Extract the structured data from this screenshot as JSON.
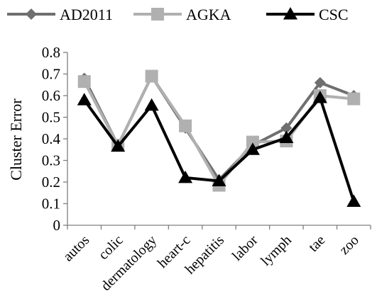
{
  "chart_data": {
    "type": "line",
    "ylabel": "Cluster Error",
    "xlabel": "",
    "title": "",
    "ylim": [
      0,
      0.8
    ],
    "yticks": [
      "0",
      "0.1",
      "0.2",
      "0.3",
      "0.4",
      "0.5",
      "0.6",
      "0.7",
      "0.8"
    ],
    "categories": [
      "autos",
      "colic",
      "dermatology",
      "heart-c",
      "hepatitis",
      "labor",
      "lymph",
      "tae",
      "zoo"
    ],
    "legend_position": "top",
    "grid": false,
    "series": [
      {
        "name": "AD2011",
        "marker": "diamond",
        "color": "#6f6f6f",
        "values": [
          0.68,
          0.37,
          0.69,
          0.45,
          0.21,
          0.37,
          0.45,
          0.66,
          0.6
        ]
      },
      {
        "name": "AGKA",
        "marker": "square",
        "color": "#b0b0b0",
        "values": [
          0.665,
          0.37,
          0.69,
          0.46,
          0.185,
          0.385,
          0.39,
          0.6,
          0.585
        ]
      },
      {
        "name": "CSC",
        "marker": "triangle",
        "color": "#000000",
        "values": [
          0.58,
          0.365,
          0.555,
          0.22,
          0.205,
          0.35,
          0.405,
          0.59,
          0.11
        ]
      }
    ]
  }
}
